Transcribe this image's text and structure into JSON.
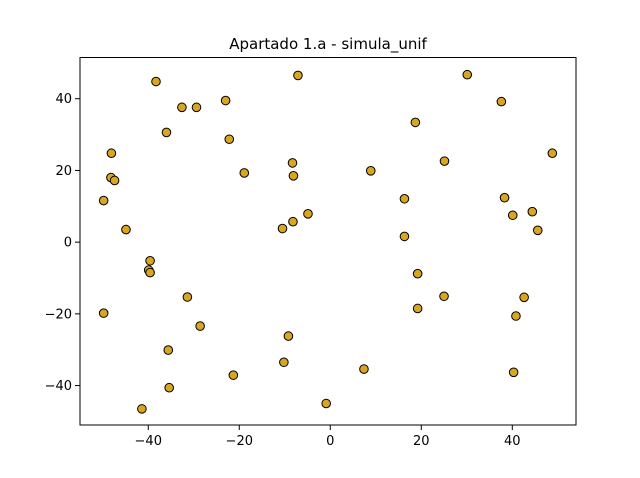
{
  "chart_data": {
    "type": "scatter",
    "title": "Apartado 1.a - simula_unif",
    "xlabel": "",
    "ylabel": "",
    "xlim": [
      -55,
      54
    ],
    "ylim": [
      -51,
      51.5
    ],
    "xticks": [
      -40,
      -20,
      0,
      20,
      40
    ],
    "yticks": [
      -40,
      -20,
      0,
      20,
      40
    ],
    "grid": false,
    "marker_color": "#DAA520",
    "marker_edge_color": "#000000",
    "points": [
      {
        "x": -38.3,
        "y": 44.8
      },
      {
        "x": -7.1,
        "y": 46.5
      },
      {
        "x": 30.1,
        "y": 46.7
      },
      {
        "x": 37.6,
        "y": 39.2
      },
      {
        "x": -23.0,
        "y": 39.5
      },
      {
        "x": -32.6,
        "y": 37.6
      },
      {
        "x": -29.4,
        "y": 37.6
      },
      {
        "x": 18.7,
        "y": 33.4
      },
      {
        "x": -36.0,
        "y": 30.6
      },
      {
        "x": -22.2,
        "y": 28.7
      },
      {
        "x": 48.8,
        "y": 24.8
      },
      {
        "x": -48.1,
        "y": 24.8
      },
      {
        "x": 25.1,
        "y": 22.6
      },
      {
        "x": -8.3,
        "y": 22.1
      },
      {
        "x": 8.9,
        "y": 19.9
      },
      {
        "x": -18.9,
        "y": 19.3
      },
      {
        "x": -8.1,
        "y": 18.5
      },
      {
        "x": -48.2,
        "y": 18.0
      },
      {
        "x": -47.4,
        "y": 17.2
      },
      {
        "x": 16.3,
        "y": 12.1
      },
      {
        "x": 38.3,
        "y": 12.4
      },
      {
        "x": -49.8,
        "y": 11.6
      },
      {
        "x": 44.4,
        "y": 8.5
      },
      {
        "x": 40.1,
        "y": 7.5
      },
      {
        "x": -4.9,
        "y": 7.9
      },
      {
        "x": -8.2,
        "y": 5.7
      },
      {
        "x": -10.5,
        "y": 3.8
      },
      {
        "x": -44.9,
        "y": 3.5
      },
      {
        "x": 45.6,
        "y": 3.3
      },
      {
        "x": 16.3,
        "y": 1.6
      },
      {
        "x": -39.6,
        "y": -5.2
      },
      {
        "x": -39.9,
        "y": -7.8
      },
      {
        "x": -39.6,
        "y": -8.5
      },
      {
        "x": 19.2,
        "y": -8.8
      },
      {
        "x": -31.4,
        "y": -15.3
      },
      {
        "x": 25.0,
        "y": -15.1
      },
      {
        "x": 42.6,
        "y": -15.4
      },
      {
        "x": 19.2,
        "y": -18.5
      },
      {
        "x": -49.8,
        "y": -19.8
      },
      {
        "x": 40.8,
        "y": -20.6
      },
      {
        "x": -28.6,
        "y": -23.4
      },
      {
        "x": -9.2,
        "y": -26.2
      },
      {
        "x": -35.6,
        "y": -30.1
      },
      {
        "x": -10.2,
        "y": -33.5
      },
      {
        "x": 7.4,
        "y": -35.4
      },
      {
        "x": -21.3,
        "y": -37.1
      },
      {
        "x": 40.3,
        "y": -36.3
      },
      {
        "x": -35.4,
        "y": -40.6
      },
      {
        "x": -0.9,
        "y": -45.0
      },
      {
        "x": -41.4,
        "y": -46.5
      }
    ]
  }
}
